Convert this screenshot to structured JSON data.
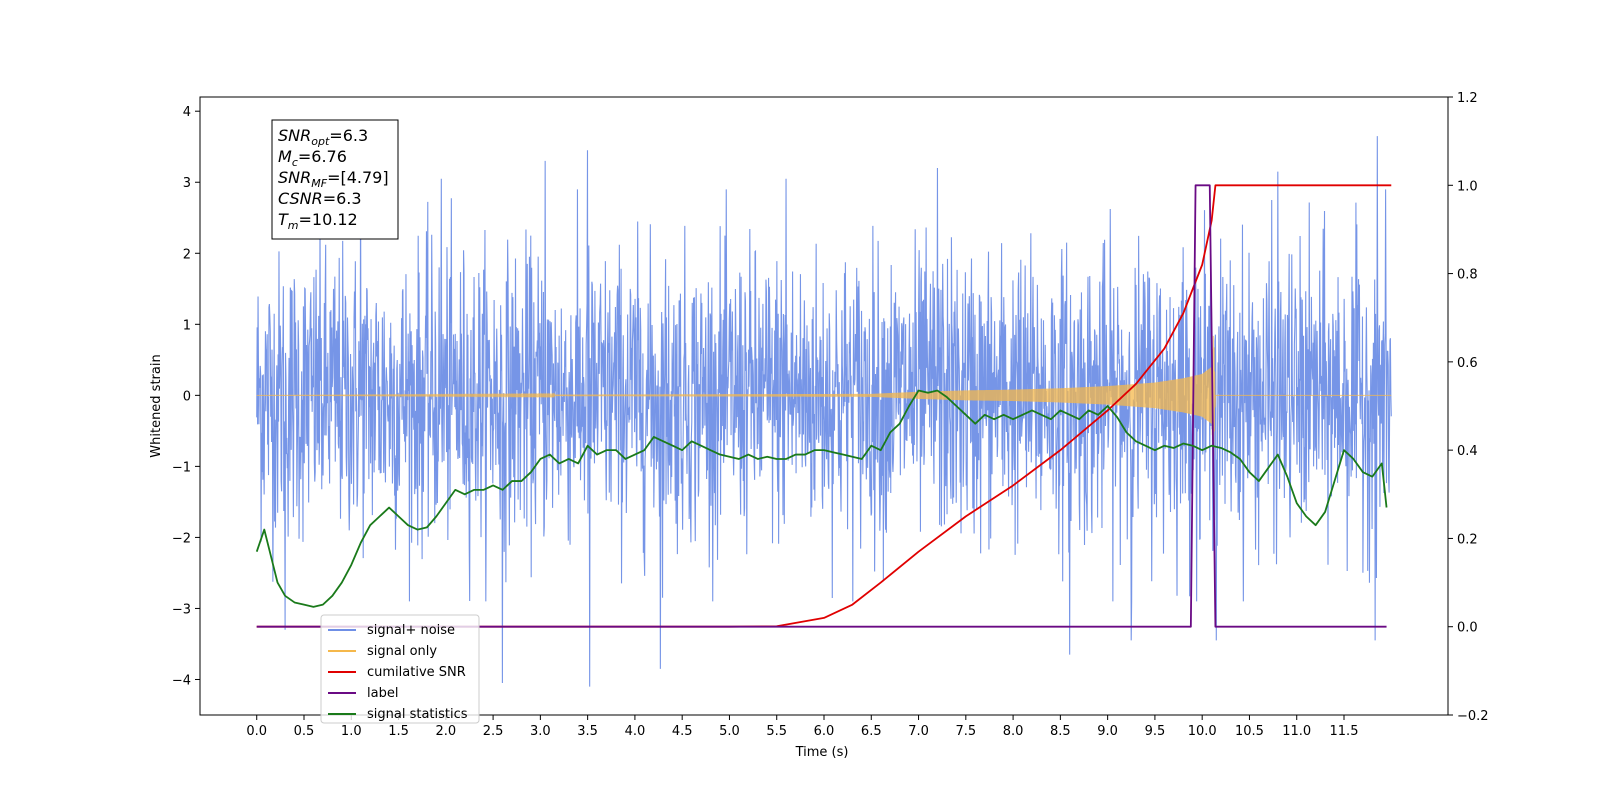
{
  "chart_data": {
    "type": "line",
    "xlabel": "Time (s)",
    "ylabel": "Whitened strain",
    "xlim": [
      -0.6,
      12.6
    ],
    "ylim": [
      -4.5,
      4.2
    ],
    "y2lim": [
      -0.2,
      1.2
    ],
    "x_ticks": [
      "0.0",
      "0.5",
      "1.0",
      "1.5",
      "2.0",
      "2.5",
      "3.0",
      "3.5",
      "4.0",
      "4.5",
      "5.0",
      "5.5",
      "6.0",
      "6.5",
      "7.0",
      "7.5",
      "8.0",
      "8.5",
      "9.0",
      "9.5",
      "10.0",
      "10.5",
      "11.0",
      "11.5"
    ],
    "y_ticks": [
      "4",
      "3",
      "2",
      "1",
      "0",
      "−1",
      "−2",
      "−3",
      "−4"
    ],
    "y2_ticks": [
      "1.2",
      "1.0",
      "0.8",
      "0.6",
      "0.4",
      "0.2",
      "0.0",
      "−0.2"
    ],
    "grid": false,
    "annotation": [
      {
        "base": "SNR",
        "sub": "opt",
        "value": "=6.3"
      },
      {
        "base": "M",
        "sub": "c",
        "value": "=6.76"
      },
      {
        "base": "SNR",
        "sub": "MF",
        "value": "=[4.79]"
      },
      {
        "base": "CSNR",
        "sub": "",
        "value": "=6.3"
      },
      {
        "base": "T",
        "sub": "m",
        "value": "=10.12"
      }
    ],
    "legend": {
      "position": "bottom-left",
      "entries": [
        "signal+ noise",
        "signal only",
        "cumilative SNR",
        "label",
        "signal statistics"
      ]
    },
    "colors": {
      "noise": "#6f8fe6",
      "signal": "#f5b84b",
      "cumulative": "#e00000",
      "label": "#6a0a84",
      "statistics": "#1a7a1a"
    },
    "series": [
      {
        "name": "signal+ noise",
        "axis": "left",
        "description": "whitened strain, approx. zero-mean noise with peaks between -4.1 and 3.7",
        "extremes": [
          [
            0.3,
            -3.3
          ],
          [
            1.1,
            3.1
          ],
          [
            1.95,
            3.05
          ],
          [
            2.6,
            -4.05
          ],
          [
            3.05,
            3.3
          ],
          [
            3.5,
            3.45
          ],
          [
            3.52,
            -4.1
          ],
          [
            4.27,
            -3.85
          ],
          [
            5.6,
            3.05
          ],
          [
            7.2,
            3.2
          ],
          [
            8.6,
            -3.65
          ],
          [
            9.25,
            -3.45
          ],
          [
            10.15,
            -3.45
          ],
          [
            10.8,
            3.15
          ],
          [
            11.85,
            3.65
          ],
          [
            11.83,
            -3.45
          ]
        ],
        "t_start": 0.0,
        "t_end": 12.0
      },
      {
        "name": "signal only",
        "axis": "left",
        "description": "chirp with growing amplitude until merger",
        "envelope": {
          "x": [
            0.0,
            6.5,
            7.0,
            7.5,
            8.0,
            8.5,
            9.0,
            9.5,
            9.8,
            10.0,
            10.1,
            10.12,
            10.14,
            12.0
          ],
          "y": [
            0.0,
            0.02,
            0.05,
            0.07,
            0.08,
            0.1,
            0.13,
            0.18,
            0.24,
            0.3,
            0.4,
            0.9,
            0.0,
            0.0
          ]
        }
      },
      {
        "name": "cumilative SNR",
        "axis": "right",
        "x": [
          0.0,
          5.0,
          5.5,
          6.0,
          6.3,
          6.6,
          7.0,
          7.5,
          8.0,
          8.5,
          9.0,
          9.3,
          9.6,
          9.8,
          10.0,
          10.1,
          10.14,
          12.0
        ],
        "y": [
          0.0,
          0.0,
          0.001,
          0.02,
          0.05,
          0.1,
          0.17,
          0.25,
          0.32,
          0.4,
          0.49,
          0.55,
          0.63,
          0.71,
          0.82,
          0.92,
          1.0,
          1.0
        ]
      },
      {
        "name": "label",
        "axis": "right",
        "x": [
          0.0,
          9.88,
          9.93,
          10.08,
          10.14,
          11.95
        ],
        "y": [
          0.0,
          0.0,
          1.0,
          1.0,
          0.0,
          0.0
        ]
      },
      {
        "name": "signal statistics",
        "axis": "right",
        "x": [
          0.0,
          0.08,
          0.15,
          0.22,
          0.3,
          0.4,
          0.5,
          0.6,
          0.7,
          0.8,
          0.9,
          1.0,
          1.1,
          1.2,
          1.3,
          1.4,
          1.5,
          1.6,
          1.7,
          1.8,
          1.9,
          2.0,
          2.1,
          2.2,
          2.3,
          2.4,
          2.5,
          2.6,
          2.7,
          2.8,
          2.9,
          3.0,
          3.1,
          3.2,
          3.3,
          3.4,
          3.5,
          3.6,
          3.7,
          3.8,
          3.9,
          4.0,
          4.1,
          4.2,
          4.3,
          4.4,
          4.5,
          4.6,
          4.7,
          4.8,
          4.9,
          5.0,
          5.1,
          5.2,
          5.3,
          5.4,
          5.5,
          5.6,
          5.7,
          5.8,
          5.9,
          6.0,
          6.1,
          6.2,
          6.3,
          6.4,
          6.5,
          6.6,
          6.7,
          6.8,
          6.9,
          7.0,
          7.1,
          7.2,
          7.3,
          7.4,
          7.5,
          7.6,
          7.7,
          7.8,
          7.9,
          8.0,
          8.1,
          8.2,
          8.3,
          8.4,
          8.5,
          8.6,
          8.7,
          8.8,
          8.9,
          9.0,
          9.1,
          9.2,
          9.3,
          9.4,
          9.5,
          9.6,
          9.7,
          9.8,
          9.9,
          10.0,
          10.1,
          10.2,
          10.3,
          10.4,
          10.5,
          10.6,
          10.7,
          10.8,
          10.9,
          11.0,
          11.1,
          11.2,
          11.3,
          11.4,
          11.5,
          11.6,
          11.7,
          11.8,
          11.9,
          11.95
        ],
        "y": [
          0.17,
          0.22,
          0.16,
          0.1,
          0.07,
          0.055,
          0.05,
          0.045,
          0.05,
          0.07,
          0.1,
          0.14,
          0.19,
          0.23,
          0.25,
          0.27,
          0.25,
          0.23,
          0.22,
          0.225,
          0.25,
          0.28,
          0.31,
          0.3,
          0.31,
          0.31,
          0.32,
          0.31,
          0.33,
          0.33,
          0.35,
          0.38,
          0.39,
          0.37,
          0.38,
          0.37,
          0.41,
          0.39,
          0.4,
          0.4,
          0.38,
          0.39,
          0.4,
          0.43,
          0.42,
          0.41,
          0.4,
          0.42,
          0.41,
          0.4,
          0.39,
          0.385,
          0.38,
          0.39,
          0.38,
          0.385,
          0.38,
          0.38,
          0.39,
          0.39,
          0.4,
          0.4,
          0.395,
          0.39,
          0.385,
          0.38,
          0.41,
          0.4,
          0.44,
          0.46,
          0.5,
          0.535,
          0.53,
          0.535,
          0.52,
          0.5,
          0.48,
          0.46,
          0.48,
          0.47,
          0.48,
          0.47,
          0.48,
          0.49,
          0.48,
          0.47,
          0.49,
          0.48,
          0.47,
          0.49,
          0.48,
          0.5,
          0.475,
          0.44,
          0.42,
          0.41,
          0.4,
          0.41,
          0.405,
          0.415,
          0.41,
          0.4,
          0.41,
          0.405,
          0.395,
          0.38,
          0.35,
          0.33,
          0.36,
          0.39,
          0.34,
          0.28,
          0.25,
          0.23,
          0.26,
          0.33,
          0.4,
          0.38,
          0.35,
          0.34,
          0.37,
          0.27
        ]
      }
    ]
  }
}
